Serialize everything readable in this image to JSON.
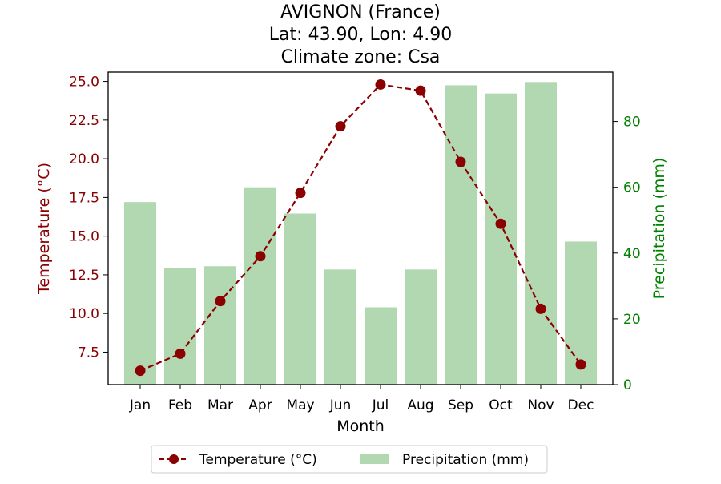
{
  "chart_data": {
    "type": "bar+line",
    "title_lines": [
      "AVIGNON (France)",
      "Lat: 43.90, Lon: 4.90",
      "Climate zone: Csa"
    ],
    "xlabel": "Month",
    "ylabel_left": "Temperature (°C)",
    "ylabel_right": "Precipitation (mm)",
    "categories": [
      "Jan",
      "Feb",
      "Mar",
      "Apr",
      "May",
      "Jun",
      "Jul",
      "Aug",
      "Sep",
      "Oct",
      "Nov",
      "Dec"
    ],
    "temperature": {
      "name": "Temperature (°C)",
      "values": [
        6.3,
        7.4,
        10.8,
        13.7,
        17.8,
        22.1,
        24.8,
        24.4,
        19.8,
        15.8,
        10.3,
        6.7
      ],
      "color": "#8b0000"
    },
    "precipitation": {
      "name": "Precipitation (mm)",
      "values": [
        55.5,
        35.5,
        36,
        60,
        52,
        35,
        23.5,
        35,
        91,
        88.5,
        92,
        43.5
      ],
      "color": "#b2d8b2"
    },
    "temp_ylim": [
      5.4,
      25.6
    ],
    "temp_ticks": [
      "7.5",
      "10.0",
      "12.5",
      "15.0",
      "17.5",
      "20.0",
      "22.5",
      "25.0"
    ],
    "precip_ylim": [
      0,
      95
    ],
    "precip_ticks": [
      "0",
      "20",
      "40",
      "60",
      "80"
    ],
    "left_axis_color": "#8b0000",
    "right_axis_color": "#008000",
    "legend_position": "bottom-center"
  }
}
